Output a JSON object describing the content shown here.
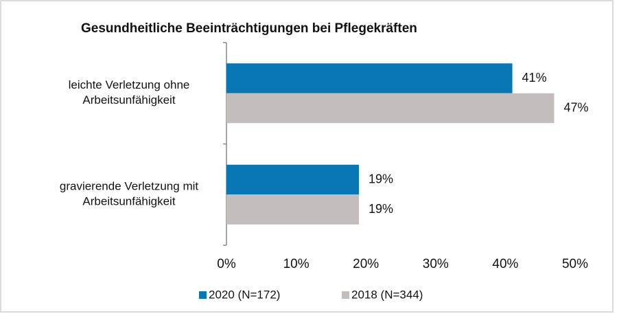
{
  "chart_data": {
    "type": "hbar",
    "title": "Gesundheitliche Beeinträchtigungen bei Pflegekräften",
    "categories": [
      "leichte Verletzung ohne\nArbeitsunfähigkeit",
      "gravierende Verletzung mit\nArbeitsunfähigkeit"
    ],
    "series": [
      {
        "name": "2020 (N=172)",
        "color": "#0a77b5",
        "values": [
          41,
          19
        ],
        "value_labels": [
          "41%",
          "19%"
        ]
      },
      {
        "name": "2018 (N=344)",
        "color": "#c3bdbd",
        "values": [
          47,
          19
        ],
        "value_labels": [
          "47%",
          "19%"
        ]
      }
    ],
    "xlim": [
      0,
      50
    ],
    "xticks": [
      {
        "value": 0,
        "label": "0%"
      },
      {
        "value": 10,
        "label": "10%"
      },
      {
        "value": 20,
        "label": "20%"
      },
      {
        "value": 30,
        "label": "30%"
      },
      {
        "value": 40,
        "label": "40%"
      },
      {
        "value": 50,
        "label": "50%"
      }
    ],
    "grid": false,
    "legend": "bottom"
  }
}
